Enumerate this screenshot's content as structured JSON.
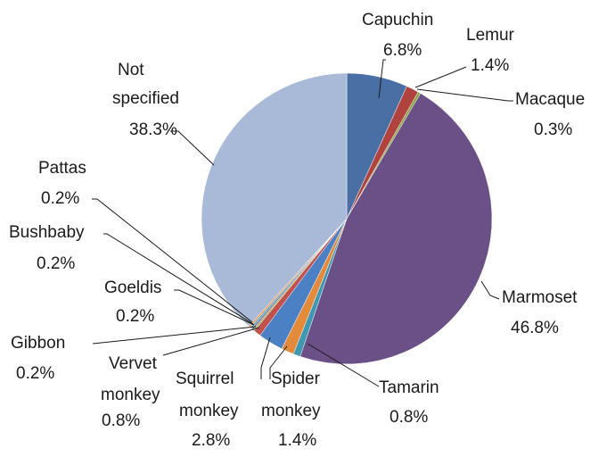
{
  "chart_data": {
    "type": "pie",
    "title": "",
    "start_angle_deg": 0,
    "direction": "clockwise",
    "slices": [
      {
        "label": "Capuchin",
        "value": 6.8,
        "display": "6.8%",
        "color": "#4a6fa5"
      },
      {
        "label": "Lemur",
        "value": 1.4,
        "display": "1.4%",
        "color": "#b0433e"
      },
      {
        "label": "Macaque",
        "value": 0.3,
        "display": "0.3%",
        "color": "#8aa446"
      },
      {
        "label": "Marmoset",
        "value": 46.8,
        "display": "46.8%",
        "color": "#6a5087"
      },
      {
        "label": "Tamarin",
        "value": 0.8,
        "display": "0.8%",
        "color": "#3f97b1"
      },
      {
        "label": "Spider monkey",
        "value": 1.4,
        "display": "1.4%",
        "color": "#e38b3b"
      },
      {
        "label": "Squirrel monkey",
        "value": 2.8,
        "display": "2.8%",
        "color": "#4c80c4"
      },
      {
        "label": "Vervet monkey",
        "value": 0.8,
        "display": "0.8%",
        "color": "#c2504d"
      },
      {
        "label": "Gibbon",
        "value": 0.2,
        "display": "0.2%",
        "color": "#9bbb59"
      },
      {
        "label": "Goeldis",
        "value": 0.2,
        "display": "0.2%",
        "color": "#8064a2"
      },
      {
        "label": "Bushbaby",
        "value": 0.2,
        "display": "0.2%",
        "color": "#4bacc6"
      },
      {
        "label": "Pattas",
        "value": 0.2,
        "display": "0.2%",
        "color": "#f79646"
      },
      {
        "label": "Not specified",
        "value": 38.3,
        "display": "38.3%",
        "color": "#a9b9d8"
      }
    ]
  }
}
